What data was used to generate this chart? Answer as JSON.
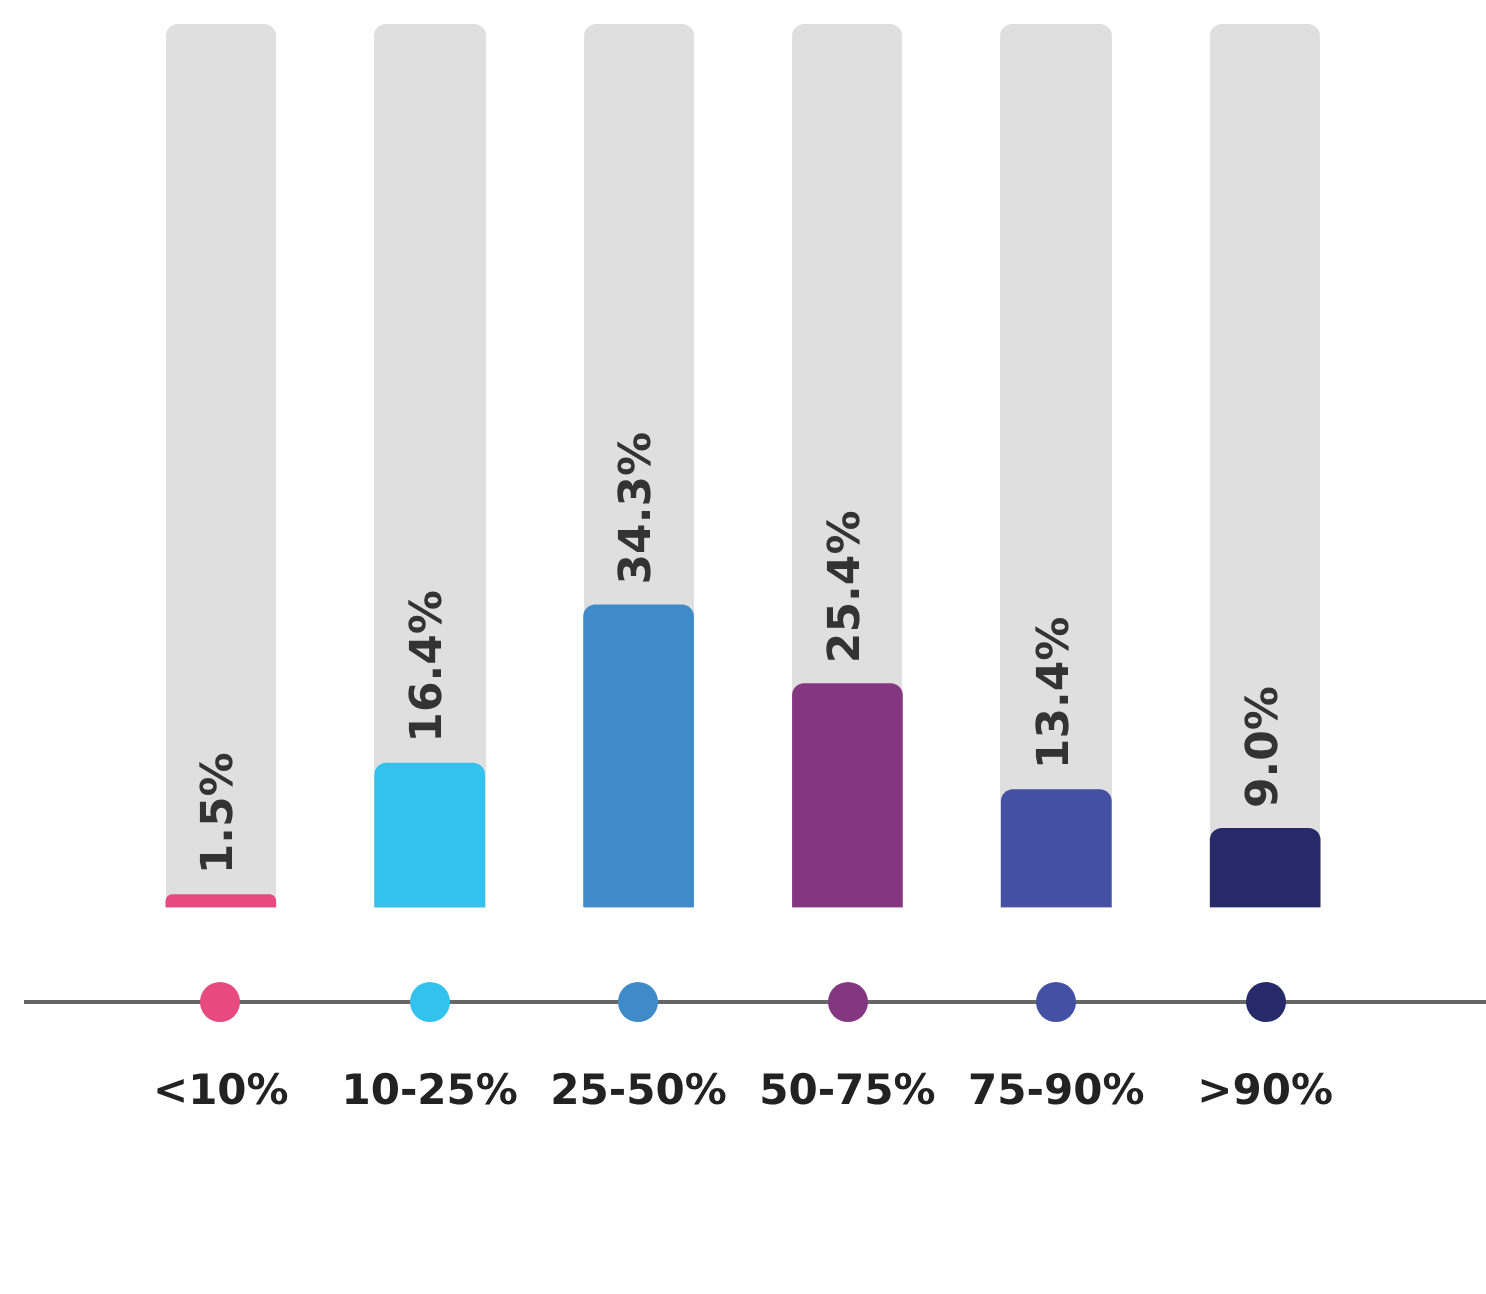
{
  "chart_data": {
    "type": "bar",
    "categories": [
      "<10%",
      "10-25%",
      "25-50%",
      "50-75%",
      "75-90%",
      ">90%"
    ],
    "values": [
      1.5,
      16.4,
      34.3,
      25.4,
      13.4,
      9.0
    ],
    "colors": [
      "#e84a7f",
      "#33c1ee",
      "#3f8bca",
      "#843781",
      "#4350a3",
      "#262a68"
    ],
    "value_labels": [
      "1.5%",
      "16.4%",
      "34.3%",
      "25.4%",
      "13.4%",
      "9.0%"
    ],
    "ylim": [
      0,
      100
    ],
    "tick_labels": "x",
    "grid": false,
    "legend": false
  }
}
